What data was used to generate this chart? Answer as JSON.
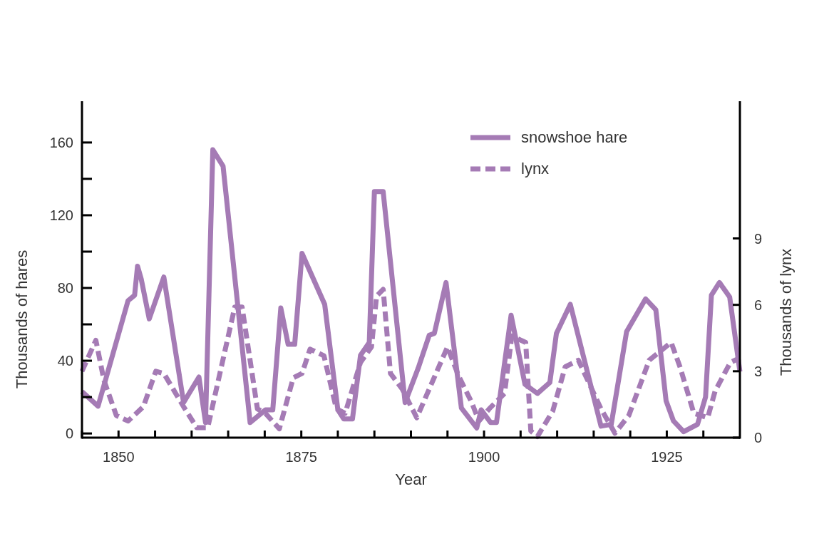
{
  "chart_data": {
    "type": "line",
    "xlabel": "Year",
    "ylabel": "Thousands of hares",
    "y2label": "Thousands of lynx",
    "xlim": [
      1845,
      1935
    ],
    "xticks": [
      {
        "value": 1845,
        "label": null
      },
      1850,
      {
        "value": 1855,
        "label": null
      },
      {
        "value": 1860,
        "label": null
      },
      {
        "value": 1865,
        "label": null
      },
      {
        "value": 1870,
        "label": null
      },
      1875,
      {
        "value": 1880,
        "label": null
      },
      {
        "value": 1885,
        "label": null
      },
      {
        "value": 1890,
        "label": null
      },
      {
        "value": 1895,
        "label": null
      },
      1900,
      {
        "value": 1905,
        "label": null
      },
      {
        "value": 1910,
        "label": null
      },
      {
        "value": 1915,
        "label": null
      },
      {
        "value": 1920,
        "label": null
      },
      1925,
      {
        "value": 1930,
        "label": null
      }
    ],
    "ylim": [
      -2.3,
      182.7
    ],
    "yticks": [
      0,
      {
        "value": 20,
        "label": null
      },
      40,
      {
        "value": 60,
        "label": null
      },
      80,
      {
        "value": 100,
        "label": null
      },
      120,
      {
        "value": 140,
        "label": null
      },
      160
    ],
    "y2lim": [
      0,
      15.2
    ],
    "y2ticks": [
      0,
      3,
      6,
      9
    ],
    "legend": "top right",
    "grid": false,
    "series": [
      {
        "name": "snowshoe hare",
        "color": "#a57bb5",
        "line_style": "solid",
        "x": [
          1845,
          1847.2,
          1851.3,
          1852.2,
          1852.6,
          1853.1,
          1854.2,
          1856.2,
          1858.9,
          1861,
          1861.9,
          1862.9,
          1864.3,
          1868,
          1870.1,
          1871.1,
          1872.2,
          1873.2,
          1874.1,
          1875.1,
          1878.2,
          1880,
          1880.8,
          1882,
          1883.1,
          1884.3,
          1885,
          1886.2,
          1889.2,
          1891,
          1892.5,
          1893.2,
          1894.8,
          1896.9,
          1899,
          1899.6,
          1900.9,
          1901.7,
          1903.7,
          1905.6,
          1907.3,
          1909,
          1909.9,
          1911.8,
          1916,
          1917.4,
          1919.5,
          1922.1,
          1923.5,
          1924.9,
          1925.9,
          1927.3,
          1929.2,
          1930.3,
          1931.1,
          1932.2,
          1933.6,
          1935
        ],
        "values": [
          23,
          15,
          73,
          76,
          92,
          85,
          63,
          86,
          17,
          31,
          6,
          156,
          147,
          6,
          13,
          13,
          69,
          49,
          49,
          99,
          71,
          13,
          8,
          8,
          43,
          50,
          133,
          133,
          17,
          36,
          54,
          55,
          83,
          14,
          3,
          13,
          6,
          6,
          65,
          27,
          22,
          28,
          55,
          71,
          4,
          5,
          56,
          74,
          68,
          18,
          7,
          1,
          5,
          20,
          76,
          83,
          75,
          34
        ]
      },
      {
        "name": "lynx",
        "color": "#a57bb5",
        "line_style": "dashed",
        "axis": "y2",
        "x": [
          1845,
          1846.9,
          1848,
          1849.7,
          1851.3,
          1853.4,
          1855.1,
          1856.2,
          1858.9,
          1860.7,
          1862.2,
          1865.9,
          1866.9,
          1869,
          1870.1,
          1872,
          1873.9,
          1875.1,
          1876.2,
          1878.1,
          1879.8,
          1881,
          1883.1,
          1884.6,
          1885.3,
          1886.2,
          1887.2,
          1888.8,
          1890.8,
          1895,
          1896.5,
          1898.3,
          1899.3,
          1900.7,
          1902.8,
          1903.8,
          1905.7,
          1906.4,
          1907.3,
          1909.4,
          1911.1,
          1912.9,
          1916,
          1917.9,
          1919.8,
          1922.6,
          1925.6,
          1926.8,
          1928.7,
          1930.6,
          1931.6,
          1933.7,
          1935
        ],
        "values": [
          3.0,
          4.4,
          2.6,
          1.0,
          0.75,
          1.4,
          3.0,
          2.9,
          1.4,
          0.45,
          0.45,
          5.9,
          5.9,
          1.3,
          1.1,
          0.4,
          2.7,
          2.9,
          4.0,
          3.7,
          1.3,
          1.1,
          3.4,
          4.1,
          6.4,
          6.7,
          2.9,
          2.2,
          0.9,
          4.1,
          2.8,
          1.6,
          0.75,
          1.3,
          2.0,
          4.6,
          4.3,
          0.3,
          0.05,
          1.2,
          3.2,
          3.5,
          1.3,
          0.2,
          1.0,
          3.5,
          4.3,
          3.2,
          1.1,
          0.9,
          2.1,
          3.4,
          3.6
        ]
      }
    ]
  }
}
